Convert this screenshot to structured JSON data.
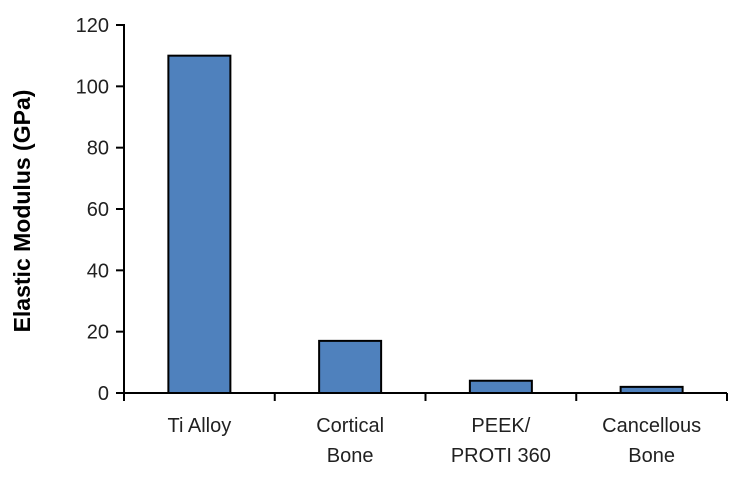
{
  "chart_data": {
    "type": "bar",
    "title": "",
    "ylabel": "Elastic Modulus (GPa)",
    "xlabel": "",
    "categories": [
      "Ti Alloy",
      "Cortical Bone",
      "PEEK/ PROTI 360",
      "Cancellous Bone"
    ],
    "category_lines": [
      [
        "Ti Alloy"
      ],
      [
        "Cortical",
        "Bone"
      ],
      [
        "PEEK/",
        "PROTI 360"
      ],
      [
        "Cancellous",
        "Bone"
      ]
    ],
    "values": [
      110,
      17,
      4,
      2
    ],
    "yticks": [
      0,
      20,
      40,
      60,
      80,
      100,
      120
    ],
    "ylim": [
      0,
      120
    ],
    "grid": false,
    "legend": false,
    "colors": {
      "bar_fill": "#4F81BD",
      "bar_border": "#000000",
      "axis": "#000000",
      "tick_text": "#212121",
      "axis_title_text": "#000000",
      "background": "#FFFFFF"
    }
  }
}
